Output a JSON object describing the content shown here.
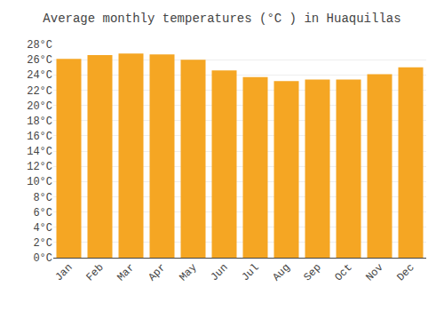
{
  "chart_data": {
    "type": "bar",
    "title": "Average monthly temperatures (°C ) in Huaquillas",
    "categories": [
      "Jan",
      "Feb",
      "Mar",
      "Apr",
      "May",
      "Jun",
      "Jul",
      "Aug",
      "Sep",
      "Oct",
      "Nov",
      "Dec"
    ],
    "values": [
      26.1,
      26.6,
      26.8,
      26.7,
      26.0,
      24.6,
      23.7,
      23.2,
      23.4,
      23.4,
      24.1,
      25.0
    ],
    "color": "#F5A623",
    "ylim": [
      0,
      28
    ],
    "yticks": [
      {
        "value": 0,
        "label": "0°C"
      },
      {
        "value": 2,
        "label": "2°C"
      },
      {
        "value": 4,
        "label": "4°C"
      },
      {
        "value": 6,
        "label": "6°C"
      },
      {
        "value": 8,
        "label": "8°C"
      },
      {
        "value": 10,
        "label": "10°C"
      },
      {
        "value": 12,
        "label": "12°C"
      },
      {
        "value": 14,
        "label": "14°C"
      },
      {
        "value": 16,
        "label": "16°C"
      },
      {
        "value": 18,
        "label": "18°C"
      },
      {
        "value": 20,
        "label": "20°C"
      },
      {
        "value": 22,
        "label": "22°C"
      },
      {
        "value": 24,
        "label": "24°C"
      },
      {
        "value": 26,
        "label": "26°C"
      },
      {
        "value": 28,
        "label": "28°C"
      }
    ],
    "grid": true
  }
}
